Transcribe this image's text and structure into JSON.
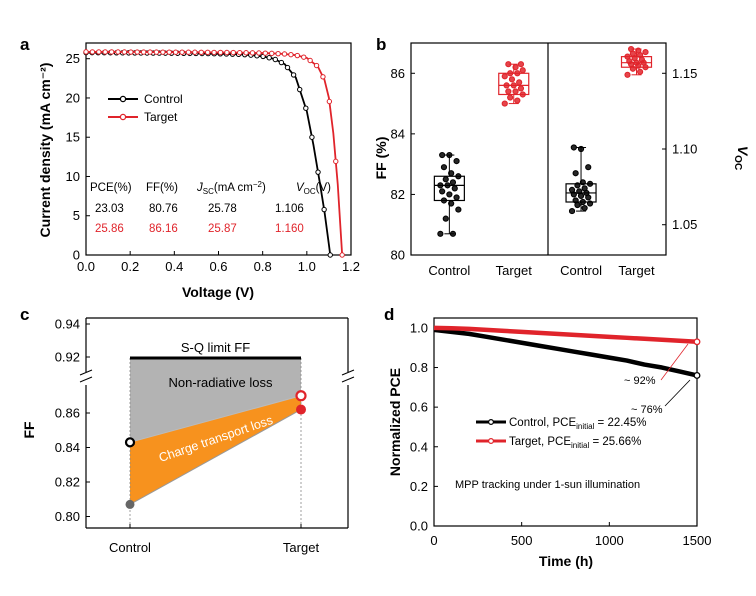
{
  "panels": {
    "a": "a",
    "b": "b",
    "c": "c",
    "d": "d"
  },
  "colors": {
    "control": "#000000",
    "target": "#e0242b",
    "gray": "#b3b3b3",
    "orange": "#f7921e"
  },
  "chart_data": [
    {
      "id": "a",
      "type": "line",
      "xlabel": "Voltage (V)",
      "ylabel": "Current density (mA cm⁻²)",
      "xlim": [
        0,
        1.2
      ],
      "ylim": [
        0,
        27
      ],
      "xticks": [
        "0.0",
        "0.2",
        "0.4",
        "0.6",
        "0.8",
        "1.0",
        "1.2"
      ],
      "yticks": [
        "0",
        "5",
        "10",
        "15",
        "20",
        "25"
      ],
      "series": [
        {
          "name": "Control",
          "color": "#000000",
          "voc": 1.106,
          "jsc": 25.78,
          "x": [
            0,
            0.1,
            0.2,
            0.3,
            0.4,
            0.5,
            0.6,
            0.7,
            0.75,
            0.8,
            0.85,
            0.9,
            0.95,
            1.0,
            1.03,
            1.06,
            1.08,
            1.1,
            1.106
          ],
          "y": [
            25.78,
            25.76,
            25.74,
            25.72,
            25.7,
            25.67,
            25.63,
            25.55,
            25.45,
            25.3,
            25.0,
            24.3,
            22.6,
            18.3,
            14.0,
            9.0,
            5.5,
            1.3,
            0
          ]
        },
        {
          "name": "Target",
          "color": "#e0242b",
          "voc": 1.16,
          "jsc": 25.87,
          "x": [
            0,
            0.1,
            0.2,
            0.3,
            0.4,
            0.5,
            0.6,
            0.7,
            0.8,
            0.85,
            0.9,
            0.95,
            1.0,
            1.05,
            1.08,
            1.1,
            1.12,
            1.14,
            1.16
          ],
          "y": [
            25.87,
            25.86,
            25.85,
            25.84,
            25.83,
            25.82,
            25.8,
            25.77,
            25.72,
            25.67,
            25.6,
            25.45,
            25.1,
            24.0,
            22.3,
            20.0,
            15.5,
            9.0,
            0
          ]
        }
      ],
      "table": {
        "headers": [
          "PCE(%)",
          "FF(%)",
          "J_SC(mA cm⁻²)",
          "V_OC(V)"
        ],
        "header_parts": [
          {
            "main": "PCE(%)"
          },
          {
            "main": "FF(%)"
          },
          {
            "main": "J",
            "sub": "SC",
            "rest": "(mA cm",
            "sup": "−2",
            "end": ")"
          },
          {
            "main": "V",
            "sub": "OC",
            "rest": "(V)"
          }
        ],
        "rows": [
          {
            "name": "Control",
            "values": [
              "23.03",
              "80.76",
              "25.78",
              "1.106"
            ]
          },
          {
            "name": "Target",
            "values": [
              "25.86",
              "86.16",
              "25.87",
              "1.160"
            ]
          }
        ]
      }
    },
    {
      "id": "b",
      "type": "box",
      "left": {
        "ylabel": "FF (%)",
        "ylim": [
          80,
          87
        ],
        "yticks": [
          "80",
          "82",
          "84",
          "86"
        ],
        "categories": [
          "Control",
          "Target"
        ],
        "boxes": [
          {
            "name": "Control",
            "color": "#000000",
            "min": 80.7,
            "q1": 81.8,
            "median": 82.3,
            "q3": 82.6,
            "max": 83.3,
            "points": [
              80.7,
              80.7,
              81.2,
              81.5,
              81.7,
              81.8,
              81.9,
              82.0,
              82.1,
              82.2,
              82.3,
              82.3,
              82.4,
              82.5,
              82.6,
              82.7,
              82.9,
              83.1,
              83.3,
              83.3
            ]
          },
          {
            "name": "Target",
            "color": "#e0242b",
            "min": 85.0,
            "q1": 85.3,
            "median": 85.6,
            "q3": 86.0,
            "max": 86.3,
            "points": [
              85.0,
              85.1,
              85.2,
              85.3,
              85.4,
              85.4,
              85.5,
              85.6,
              85.6,
              85.7,
              85.8,
              85.9,
              86.0,
              86.0,
              86.1,
              86.2,
              86.3,
              86.3
            ]
          }
        ]
      },
      "right": {
        "ylabel": "V_OC",
        "ylabel_parts": {
          "main": "V",
          "sub": "OC"
        },
        "ylim": [
          1.03,
          1.17
        ],
        "yticks": [
          "1.05",
          "1.10",
          "1.15"
        ],
        "categories": [
          "Control",
          "Target"
        ],
        "boxes": [
          {
            "name": "Control",
            "color": "#000000",
            "min": 1.059,
            "q1": 1.065,
            "median": 1.071,
            "q3": 1.077,
            "max": 1.101,
            "points": [
              1.059,
              1.061,
              1.063,
              1.064,
              1.065,
              1.066,
              1.068,
              1.069,
              1.07,
              1.071,
              1.072,
              1.073,
              1.074,
              1.076,
              1.077,
              1.078,
              1.084,
              1.088,
              1.1,
              1.101
            ]
          },
          {
            "name": "Target",
            "color": "#e0242b",
            "min": 1.149,
            "q1": 1.154,
            "median": 1.157,
            "q3": 1.161,
            "max": 1.166,
            "points": [
              1.149,
              1.151,
              1.153,
              1.154,
              1.155,
              1.156,
              1.157,
              1.157,
              1.158,
              1.159,
              1.16,
              1.161,
              1.162,
              1.163,
              1.164,
              1.165,
              1.166
            ]
          }
        ]
      }
    },
    {
      "id": "c",
      "type": "diagram",
      "ylabel": "FF",
      "yticks_top": [
        "0.94",
        "0.92"
      ],
      "yticks_bottom": [
        "0.86",
        "0.84",
        "0.82",
        "0.80"
      ],
      "categories": [
        "Control",
        "Target"
      ],
      "sq_limit": {
        "label": "S-Q limit FF",
        "value": 0.908
      },
      "regions": [
        {
          "label": "Non-radiative loss",
          "color": "#b3b3b3"
        },
        {
          "label": "Charge transport loss",
          "color": "#f7921e"
        }
      ],
      "points": {
        "control_upper": 0.843,
        "control_lower": 0.807,
        "target_upper": 0.87,
        "target_lower": 0.862
      }
    },
    {
      "id": "d",
      "type": "line",
      "xlabel": "Time (h)",
      "ylabel": "Normalized PCE",
      "xlim": [
        0,
        1500
      ],
      "ylim": [
        0,
        1.05
      ],
      "xticks": [
        "0",
        "500",
        "1000",
        "1500"
      ],
      "yticks": [
        "0.0",
        "0.2",
        "0.4",
        "0.6",
        "0.8",
        "1.0"
      ],
      "series": [
        {
          "name": "Control",
          "color": "#000000",
          "pce_initial": "22.45%",
          "x": [
            0,
            100,
            200,
            300,
            400,
            500,
            600,
            700,
            800,
            900,
            1000,
            1100,
            1200,
            1300,
            1400,
            1500
          ],
          "y": [
            0.99,
            0.98,
            0.97,
            0.955,
            0.94,
            0.925,
            0.91,
            0.895,
            0.88,
            0.865,
            0.85,
            0.835,
            0.815,
            0.8,
            0.78,
            0.76
          ]
        },
        {
          "name": "Target",
          "color": "#e0242b",
          "pce_initial": "25.66%",
          "x": [
            0,
            100,
            200,
            300,
            400,
            500,
            600,
            700,
            800,
            900,
            1000,
            1100,
            1200,
            1300,
            1400,
            1500
          ],
          "y": [
            1.0,
            0.998,
            0.995,
            0.99,
            0.985,
            0.98,
            0.975,
            0.97,
            0.965,
            0.96,
            0.955,
            0.95,
            0.945,
            0.94,
            0.935,
            0.93
          ]
        }
      ],
      "legend": {
        "prefix": "PCE",
        "sub": "initial",
        "control_value": "22.45%",
        "target_value": "25.66%"
      },
      "annotations": {
        "control_end": "~ 76%",
        "target_end": "~ 92%",
        "note": "MPP tracking under 1-sun illumination"
      }
    }
  ]
}
